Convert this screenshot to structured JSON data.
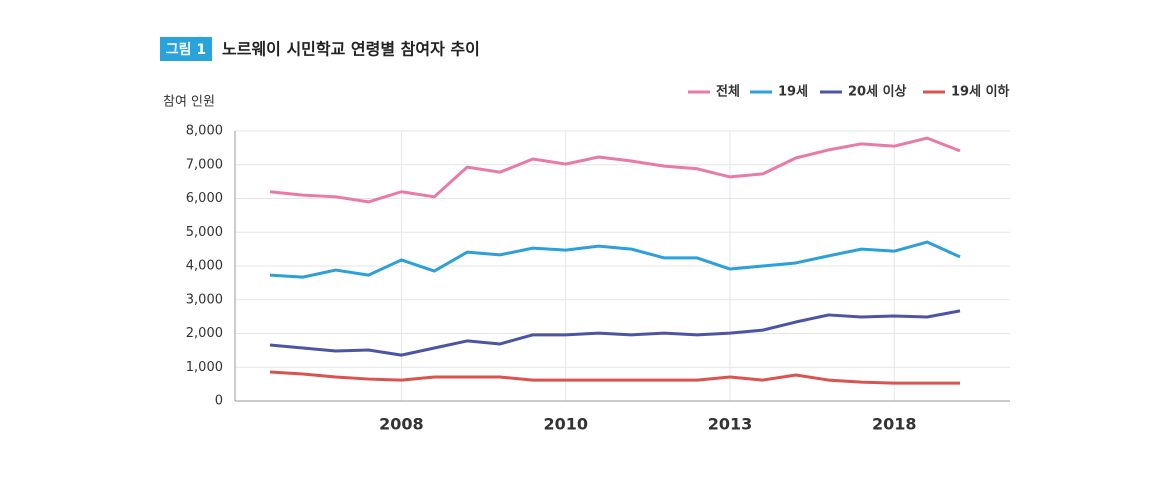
{
  "chart_data": {
    "type": "line",
    "badge": "그림 1",
    "title": "노르웨이 시민학교 연령별 참여자 추이",
    "y_label": "참여 인원",
    "categories": [
      null,
      null,
      null,
      null,
      "2008",
      null,
      null,
      null,
      null,
      "2010",
      null,
      null,
      null,
      null,
      "2013",
      null,
      null,
      null,
      null,
      "2018",
      null,
      null
    ],
    "ylim": [
      0,
      8000
    ],
    "yticks": [
      0,
      {
        "value": 1000,
        "label": "1,000"
      },
      {
        "value": 2000,
        "label": "2,000"
      },
      {
        "value": 3000,
        "label": "3,000"
      },
      {
        "value": 4000,
        "label": "4,000"
      },
      {
        "value": 5000,
        "label": "5,000"
      },
      {
        "value": 6000,
        "label": "6,000"
      },
      {
        "value": 7000,
        "label": "7,000"
      },
      {
        "value": 8000,
        "label": "8,000"
      }
    ],
    "grid": true,
    "legend": "top-right",
    "series": [
      {
        "name": "전체",
        "color": "#e87aa8",
        "values": [
          6200,
          6100,
          6050,
          5900,
          6200,
          6050,
          6930,
          6780,
          7170,
          7020,
          7230,
          7110,
          6960,
          6880,
          6640,
          6730,
          7200,
          7440,
          7620,
          7550,
          7790,
          7410
        ]
      },
      {
        "name": "19세",
        "color": "#2d9fd9",
        "values": [
          3730,
          3670,
          3880,
          3730,
          4180,
          3850,
          4410,
          4330,
          4530,
          4470,
          4590,
          4500,
          4240,
          4240,
          3910,
          4000,
          4090,
          4300,
          4500,
          4440,
          4710,
          4270
        ]
      },
      {
        "name": "20세 이상",
        "color": "#4b55a3",
        "values": [
          1660,
          1570,
          1480,
          1510,
          1360,
          1570,
          1780,
          1690,
          1960,
          1960,
          2010,
          1960,
          2010,
          1960,
          2010,
          2100,
          2340,
          2550,
          2490,
          2520,
          2490,
          2670
        ]
      },
      {
        "name": "19세 이하",
        "color": "#d9534f",
        "values": [
          860,
          800,
          710,
          650,
          620,
          710,
          710,
          710,
          620,
          620,
          620,
          620,
          620,
          620,
          710,
          620,
          770,
          620,
          560,
          530,
          530,
          530
        ]
      }
    ]
  }
}
